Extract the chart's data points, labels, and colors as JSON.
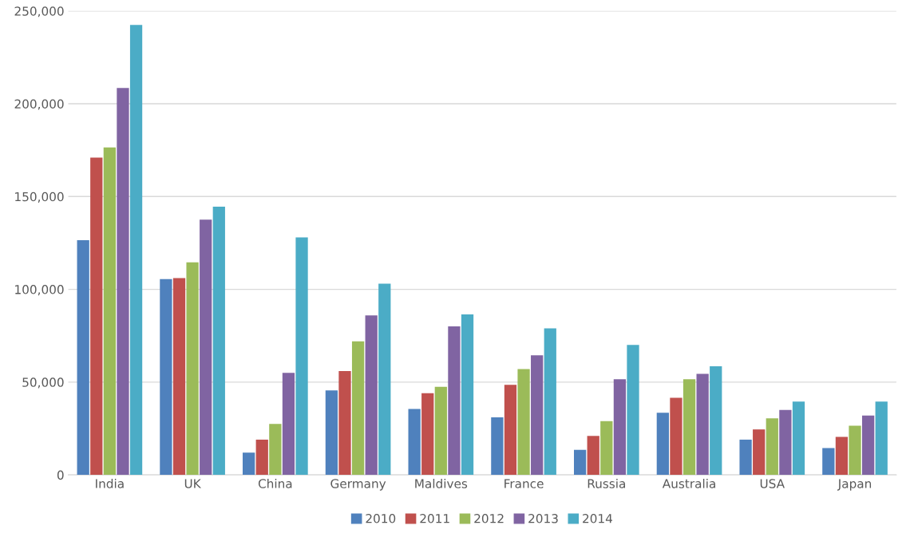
{
  "chart_data": {
    "type": "bar",
    "categories": [
      "India",
      "UK",
      "China",
      "Germany",
      "Maldives",
      "France",
      "Russia",
      "Australia",
      "USA",
      "Japan"
    ],
    "series": [
      {
        "name": "2010",
        "color": "#4f81bd",
        "values": [
          126500,
          105500,
          12000,
          45500,
          35500,
          31000,
          13500,
          33500,
          19000,
          14500
        ]
      },
      {
        "name": "2011",
        "color": "#c0504d",
        "values": [
          171000,
          106000,
          19000,
          56000,
          44000,
          48500,
          21000,
          41500,
          24500,
          20500
        ]
      },
      {
        "name": "2012",
        "color": "#9bbb59",
        "values": [
          176500,
          114500,
          27500,
          72000,
          47500,
          57000,
          29000,
          51500,
          30500,
          26500
        ]
      },
      {
        "name": "2013",
        "color": "#8064a2",
        "values": [
          208500,
          137500,
          55000,
          86000,
          80000,
          64500,
          51500,
          54500,
          35000,
          32000
        ]
      },
      {
        "name": "2014",
        "color": "#4bacc6",
        "values": [
          242500,
          144500,
          128000,
          103000,
          86500,
          79000,
          70000,
          58500,
          39500,
          39500
        ]
      }
    ],
    "ylim": [
      0,
      250000
    ],
    "yticks": [
      0,
      {
        "value": 50000,
        "label": "50,000"
      },
      {
        "value": 100000,
        "label": "100,000"
      },
      {
        "value": 150000,
        "label": "150,000"
      },
      {
        "value": 200000,
        "label": "200,000"
      },
      {
        "value": 250000,
        "label": "250,000"
      }
    ],
    "grid": "y",
    "legend": "bottom"
  }
}
